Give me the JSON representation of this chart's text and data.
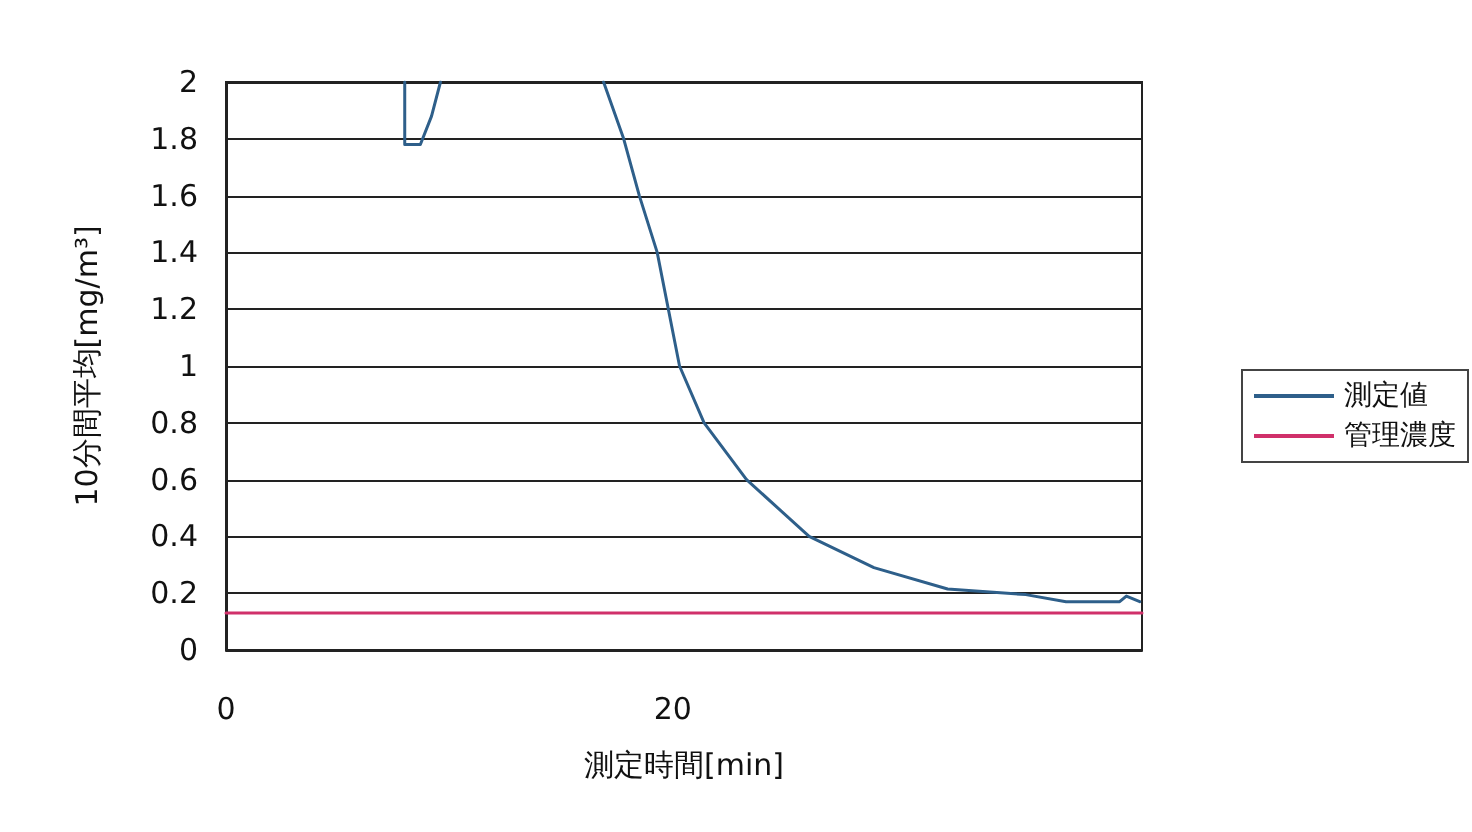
{
  "chart_data": {
    "type": "line",
    "xlabel": "測定時間[min]",
    "ylabel": "10分間平均[mg/m³]",
    "xlim": [
      0,
      41
    ],
    "xticks": [
      0,
      20
    ],
    "ylim": [
      0,
      2
    ],
    "yticks": [
      0,
      0.2,
      0.4,
      0.6,
      0.8,
      1,
      1.2,
      1.4,
      1.6,
      1.8,
      2
    ],
    "grid": "y",
    "legend": "right",
    "marker": "none",
    "line_style": "solid",
    "series": [
      {
        "name": "測定値",
        "color": "#2e5f8a",
        "x": [
          8.0,
          8.0,
          8.7,
          9.2,
          9.6,
          12,
          16.9,
          17.8,
          18.5,
          19.3,
          19.8,
          20.3,
          21.4,
          23.3,
          26.1,
          29.0,
          32.3,
          35.8,
          37.6,
          40.0,
          40.3,
          40.9
        ],
        "values": [
          2.0,
          1.78,
          1.78,
          1.88,
          2.0,
          null,
          2.0,
          1.8,
          1.6,
          1.4,
          1.2,
          1.0,
          0.8,
          0.6,
          0.4,
          0.29,
          0.215,
          0.195,
          0.17,
          0.17,
          0.19,
          0.17
        ]
      },
      {
        "name": "管理濃度",
        "color": "#d0306a",
        "x": [
          0,
          41
        ],
        "values": [
          0.13,
          0.13
        ]
      }
    ]
  }
}
